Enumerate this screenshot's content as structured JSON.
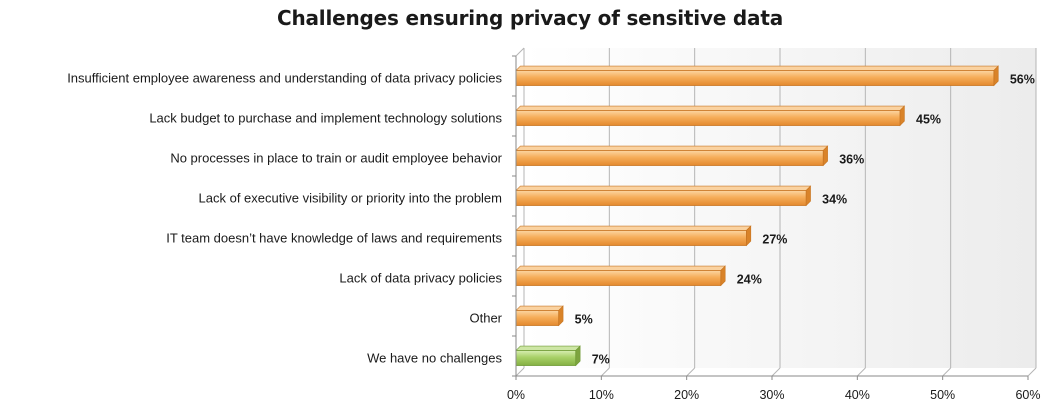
{
  "chart_data": {
    "type": "bar",
    "orientation": "horizontal",
    "title": "Challenges ensuring privacy of sensitive data",
    "categories": [
      "Insufficient employee awareness and understanding of data privacy policies",
      "Lack budget to purchase and implement technology solutions",
      "No processes in place to train or audit employee behavior",
      "Lack of executive visibility or priority into the problem",
      "IT team doesn’t have knowledge of laws and requirements",
      "Lack of data privacy policies",
      "Other",
      "We have no challenges"
    ],
    "values": [
      56,
      45,
      36,
      34,
      27,
      24,
      5,
      7
    ],
    "value_labels": [
      "56%",
      "45%",
      "36%",
      "34%",
      "27%",
      "24%",
      "5%",
      "7%"
    ],
    "bar_colors": [
      "#f5a94e",
      "#f5a94e",
      "#f5a94e",
      "#f5a94e",
      "#f5a94e",
      "#f5a94e",
      "#f5a94e",
      "#a4cc62"
    ],
    "xlim": [
      0,
      60
    ],
    "xticks": [
      0,
      10,
      20,
      30,
      40,
      50,
      60
    ],
    "xtick_labels": [
      "0%",
      "10%",
      "20%",
      "30%",
      "40%",
      "50%",
      "60%"
    ],
    "xlabel": "",
    "ylabel": "",
    "grid": "vertical",
    "legend": "none"
  }
}
